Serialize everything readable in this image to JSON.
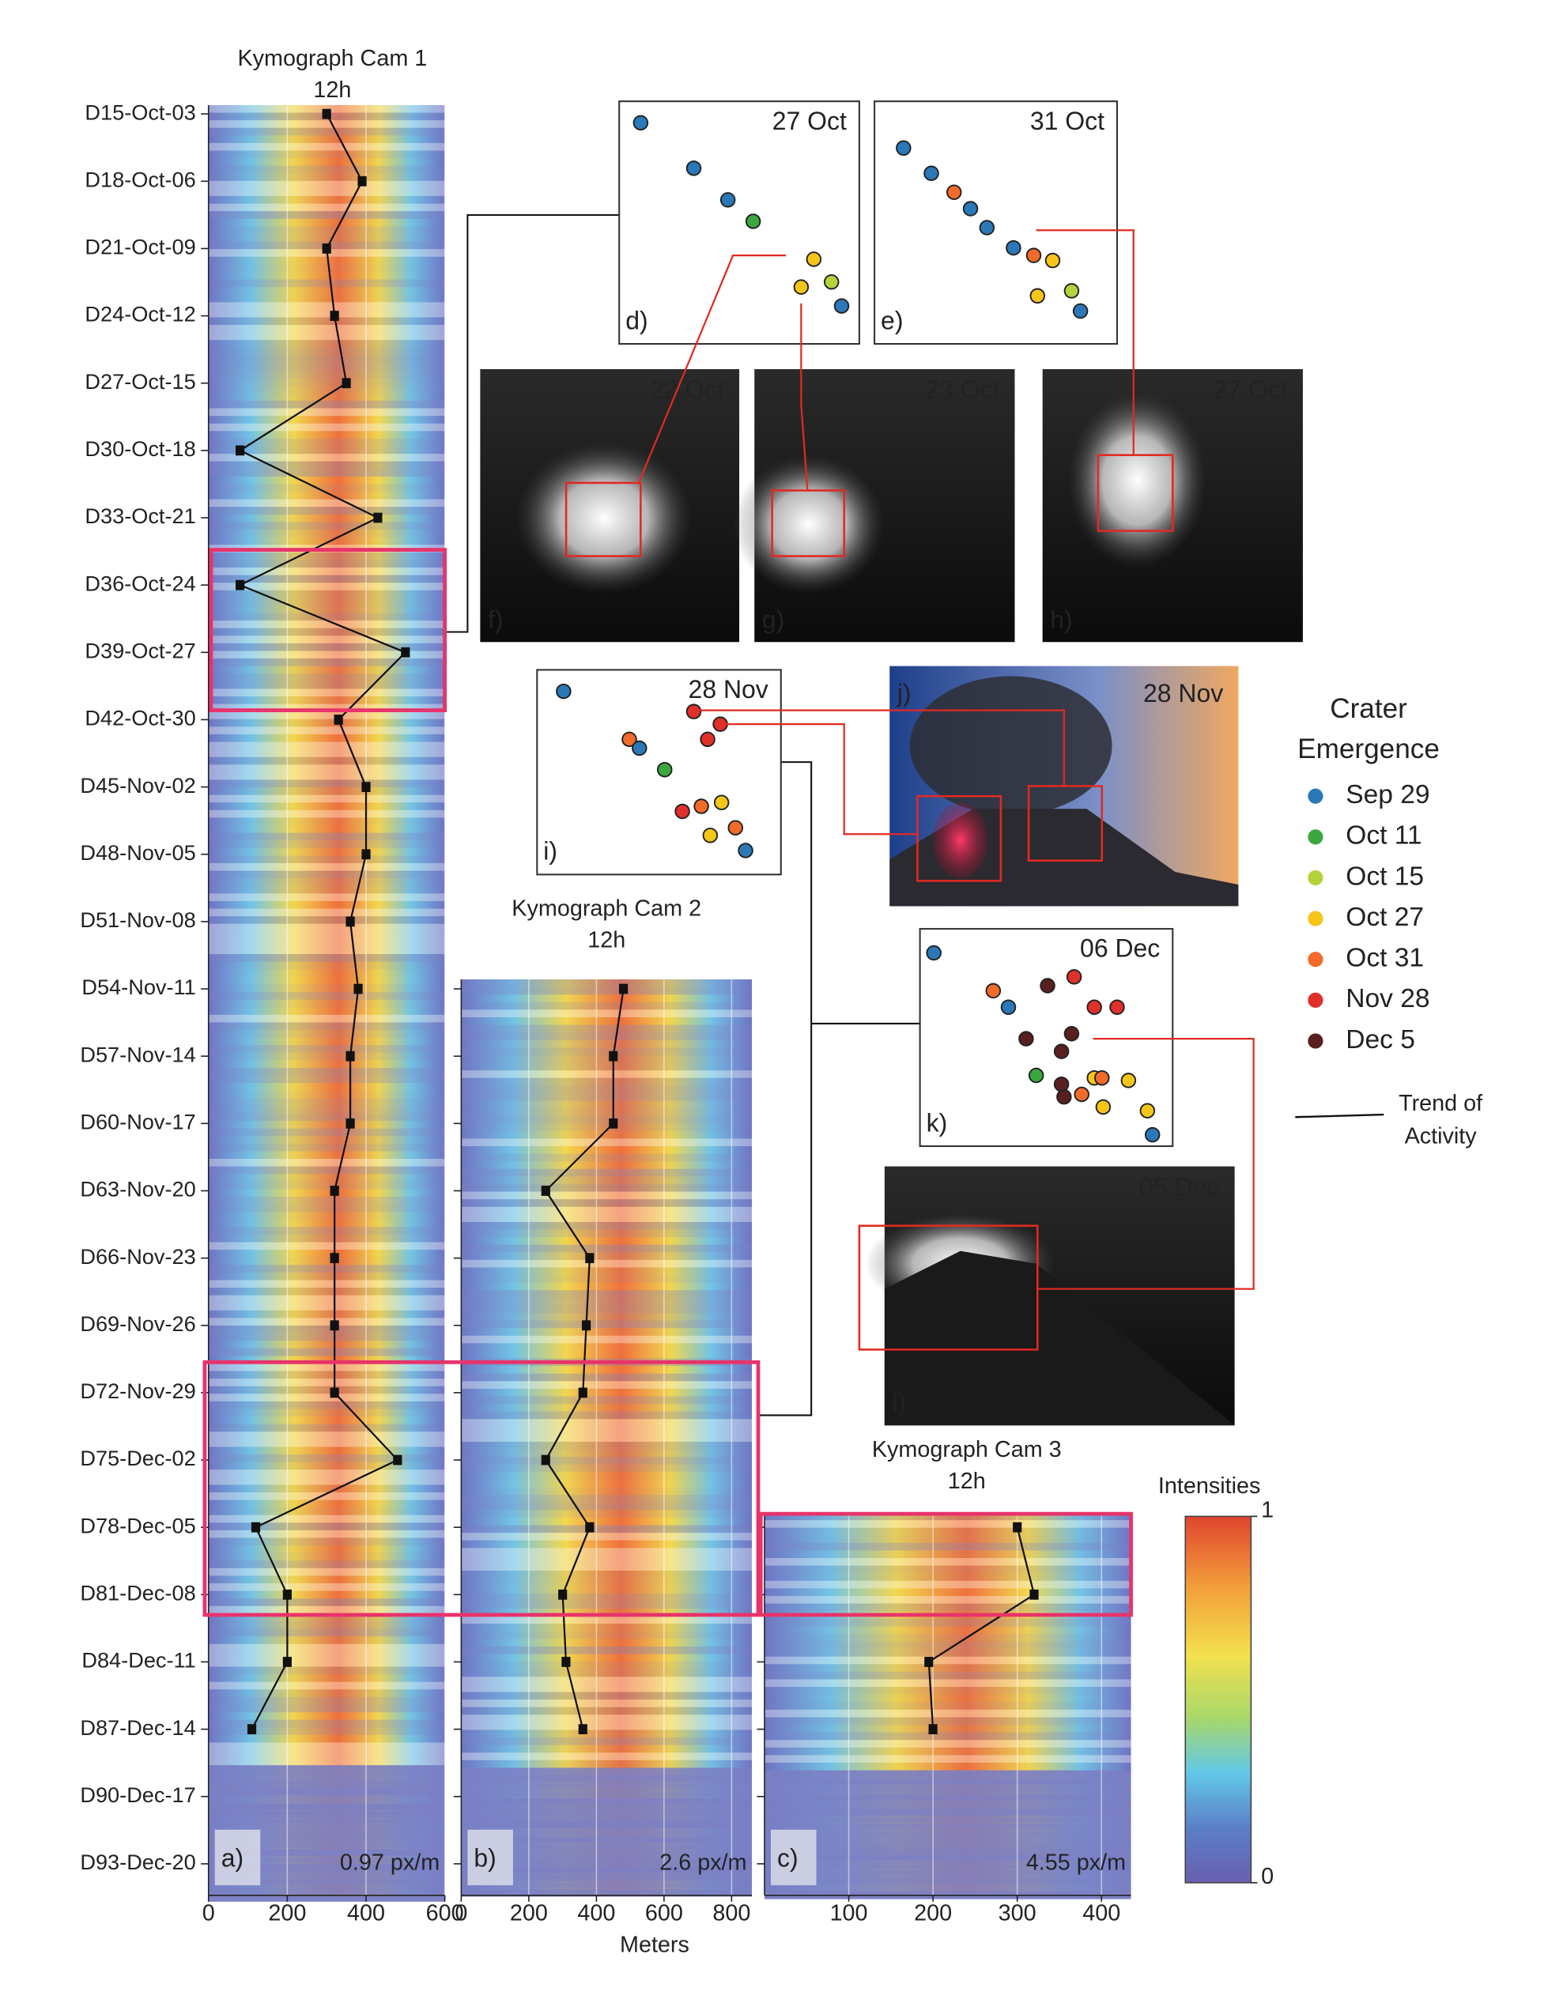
{
  "chart_data": [
    {
      "type": "line",
      "title": "Kymograph Cam 1",
      "subtitle": "12h",
      "panel_label": "a)",
      "resolution": "0.97 px/m",
      "categories": [
        "D15-Oct-03",
        "D18-Oct-06",
        "D21-Oct-09",
        "D24-Oct-12",
        "D27-Oct-15",
        "D30-Oct-18",
        "D33-Oct-21",
        "D36-Oct-24",
        "D39-Oct-27",
        "D42-Oct-30",
        "D45-Nov-02",
        "D48-Nov-05",
        "D51-Nov-08",
        "D54-Nov-11",
        "D57-Nov-14",
        "D60-Nov-17",
        "D63-Nov-20",
        "D66-Nov-23",
        "D69-Nov-26",
        "D72-Nov-29",
        "D75-Dec-02",
        "D78-Dec-05",
        "D81-Dec-08",
        "D84-Dec-11",
        "D87-Dec-14",
        "D90-Dec-17",
        "D93-Dec-20"
      ],
      "series": [
        {
          "color": "#111111",
          "values": [
            300,
            390,
            300,
            320,
            350,
            80,
            430,
            80,
            500,
            330,
            400,
            400,
            360,
            380,
            360,
            360,
            320,
            320,
            320,
            320,
            480,
            120,
            200,
            200,
            110,
            null,
            null
          ]
        }
      ],
      "xlim": [
        0,
        600
      ],
      "xticks": [
        0,
        200,
        400,
        600
      ],
      "grid": true
    },
    {
      "type": "line",
      "title": "Kymograph Cam 2",
      "subtitle": "12h",
      "panel_label": "b)",
      "resolution": "2.6 px/m",
      "xlabel": "Meters",
      "categories": [
        null,
        null,
        null,
        null,
        null,
        null,
        null,
        null,
        null,
        null,
        null,
        null,
        null,
        null,
        null,
        null,
        null,
        null,
        null,
        null,
        null,
        null,
        null,
        null,
        null,
        null,
        null
      ],
      "series": [
        {
          "color": "#111111",
          "values": [
            null,
            null,
            null,
            null,
            null,
            null,
            null,
            null,
            null,
            null,
            null,
            null,
            null,
            480,
            450,
            450,
            250,
            380,
            370,
            360,
            250,
            380,
            300,
            310,
            360,
            null,
            null
          ]
        }
      ],
      "xlim": [
        0,
        860
      ],
      "xticks": [
        0,
        200,
        400,
        600,
        800
      ],
      "grid": true
    },
    {
      "type": "line",
      "title": "Kymograph Cam 3",
      "subtitle": "12h",
      "panel_label": "c)",
      "resolution": "4.55 px/m",
      "categories": [
        null,
        null,
        null,
        null,
        null,
        null,
        null,
        null,
        null,
        null,
        null,
        null,
        null,
        null,
        null,
        null,
        null,
        null,
        null,
        null,
        null,
        null,
        null,
        null,
        null,
        null,
        null
      ],
      "series": [
        {
          "color": "#111111",
          "values": [
            null,
            null,
            null,
            null,
            null,
            null,
            null,
            null,
            null,
            null,
            null,
            null,
            null,
            null,
            null,
            null,
            null,
            null,
            null,
            null,
            null,
            300,
            320,
            195,
            200,
            null,
            null
          ]
        }
      ],
      "xlim": [
        0,
        435
      ],
      "xticks": [
        100,
        200,
        300,
        400
      ],
      "grid": true,
      "colorbar": {
        "label": "Intensities",
        "lim": [
          0,
          1
        ],
        "ticks": [
          0,
          1
        ]
      }
    }
  ],
  "highlight_color": "#e8336b",
  "figure": {
    "scatter_panels": [
      {
        "label": "d)",
        "date": "27 Oct"
      },
      {
        "label": "e)",
        "date": "31 Oct"
      },
      {
        "label": "i)",
        "date": "28 Nov"
      },
      {
        "label": "k)",
        "date": "06 Dec"
      }
    ],
    "photos": [
      {
        "label": "f)",
        "date": "22 Oct"
      },
      {
        "label": "g)",
        "date": "23 Oct"
      },
      {
        "label": "h)",
        "date": "27 Oct"
      },
      {
        "label": "j)",
        "date": "28 Nov"
      },
      {
        "label": "l)",
        "date": "05 Dec"
      }
    ],
    "legend": {
      "title": [
        "Crater",
        "Emergence"
      ],
      "entries": [
        {
          "name": "Sep 29",
          "color": "#2a78b8"
        },
        {
          "name": "Oct 11",
          "color": "#3aa83e"
        },
        {
          "name": "Oct 15",
          "color": "#b4d23c"
        },
        {
          "name": "Oct 27",
          "color": "#f5c518"
        },
        {
          "name": "Oct 31",
          "color": "#f26b2a"
        },
        {
          "name": "Nov 28",
          "color": "#e0302a"
        },
        {
          "name": "Dec 5",
          "color": "#5a1f1f"
        }
      ]
    },
    "trend_label": [
      "Trend of",
      "Activity"
    ]
  }
}
